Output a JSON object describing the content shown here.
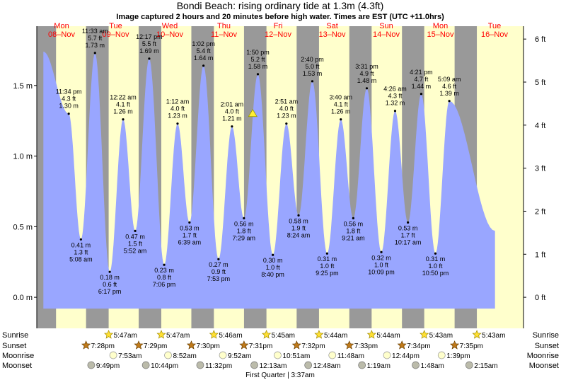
{
  "header": {
    "title": "Bondi Beach: rising  ordinary tide at 1.3m (4.3ft)",
    "subtitle": "Image captured 2 hours and 20 minutes before high water. Times are EST (UTC +11.0hrs)"
  },
  "colors": {
    "day_band": "#ffffcc",
    "night_band": "#999999",
    "tide_fill": "#99a6ff",
    "day_label": "#ff0000",
    "now_marker": "#ffee33"
  },
  "chart_data": {
    "type": "area",
    "title": "Bondi Beach: rising  ordinary tide at 1.3m (4.3ft)",
    "ylabel_left_unit": "m",
    "ylabel_right_unit": "ft",
    "ylim_m": [
      -0.22,
      1.92
    ],
    "yticks_left": [
      {
        "v": 0.0,
        "label": "0.0 m"
      },
      {
        "v": 0.5,
        "label": "0.5 m"
      },
      {
        "v": 1.0,
        "label": "1.0 m"
      },
      {
        "v": 1.5,
        "label": "1.5 m"
      }
    ],
    "yticks_right": [
      {
        "ft": 0,
        "label": "0 ft"
      },
      {
        "ft": 1,
        "label": "1 ft"
      },
      {
        "ft": 2,
        "label": "2 ft"
      },
      {
        "ft": 3,
        "label": "3 ft"
      },
      {
        "ft": 4,
        "label": "4 ft"
      },
      {
        "ft": 5,
        "label": "5 ft"
      },
      {
        "ft": 6,
        "label": "6 ft"
      }
    ],
    "x_start_hour": -3.0,
    "x_end_hour": 219.0,
    "days": [
      {
        "dow": "Mon",
        "date": "08–Nov"
      },
      {
        "dow": "Tue",
        "date": "09–Nov"
      },
      {
        "dow": "Wed",
        "date": "10–Nov"
      },
      {
        "dow": "Thu",
        "date": "11–Nov"
      },
      {
        "dow": "Fri",
        "date": "12–Nov"
      },
      {
        "dow": "Sat",
        "date": "13–Nov"
      },
      {
        "dow": "Sun",
        "date": "14–Nov"
      },
      {
        "dow": "Mon",
        "date": "15–Nov"
      },
      {
        "dow": "Tue",
        "date": "16–Nov"
      }
    ],
    "series_start": {
      "hour": 0.0,
      "height": 1.74
    },
    "series_end": {
      "hour": 206.0,
      "height": 0.47
    },
    "tides": [
      {
        "type": "high",
        "hour": 11.57,
        "time": "11:34 pm",
        "ft": "4.3 ft",
        "m": "1.30 m",
        "height": 1.3
      },
      {
        "type": "low",
        "hour": 17.13,
        "time": "5:08 am",
        "ft": "1.3 ft",
        "m": "0.41 m",
        "height": 0.41
      },
      {
        "type": "high",
        "hour": 23.55,
        "time": "11:33 am",
        "ft": "5.7 ft",
        "m": "1.73 m",
        "height": 1.73
      },
      {
        "type": "low",
        "hour": 30.28,
        "time": "6:17 pm",
        "ft": "0.6 ft",
        "m": "0.18 m",
        "height": 0.18
      },
      {
        "type": "high",
        "hour": 36.37,
        "time": "12:22 am",
        "ft": "4.1 ft",
        "m": "1.26 m",
        "height": 1.26
      },
      {
        "type": "low",
        "hour": 41.87,
        "time": "5:52 am",
        "ft": "1.5 ft",
        "m": "0.47 m",
        "height": 0.47
      },
      {
        "type": "high",
        "hour": 48.28,
        "time": "12:17 pm",
        "ft": "5.5 ft",
        "m": "1.69 m",
        "height": 1.69
      },
      {
        "type": "low",
        "hour": 55.1,
        "time": "7:06 pm",
        "ft": "0.8 ft",
        "m": "0.23 m",
        "height": 0.23
      },
      {
        "type": "high",
        "hour": 61.2,
        "time": "1:12 am",
        "ft": "4.0 ft",
        "m": "1.23 m",
        "height": 1.23
      },
      {
        "type": "low",
        "hour": 66.65,
        "time": "6:39 am",
        "ft": "1.7 ft",
        "m": "0.53 m",
        "height": 0.53
      },
      {
        "type": "high",
        "hour": 73.03,
        "time": "1:02 pm",
        "ft": "5.4 ft",
        "m": "1.64 m",
        "height": 1.64
      },
      {
        "type": "low",
        "hour": 79.88,
        "time": "7:53 pm",
        "ft": "0.9 ft",
        "m": "0.27 m",
        "height": 0.27
      },
      {
        "type": "high",
        "hour": 86.02,
        "time": "2:01 am",
        "ft": "4.0 ft",
        "m": "1.21 m",
        "height": 1.21
      },
      {
        "type": "low",
        "hour": 91.48,
        "time": "7:29 am",
        "ft": "1.8 ft",
        "m": "0.56 m",
        "height": 0.56
      },
      {
        "type": "high",
        "hour": 97.83,
        "time": "1:50 pm",
        "ft": "5.2 ft",
        "m": "1.58 m",
        "height": 1.58
      },
      {
        "type": "low",
        "hour": 104.67,
        "time": "8:40 pm",
        "ft": "1.0 ft",
        "m": "0.30 m",
        "height": 0.3
      },
      {
        "type": "high",
        "hour": 110.85,
        "time": "2:51 am",
        "ft": "4.0 ft",
        "m": "1.23 m",
        "height": 1.23
      },
      {
        "type": "low",
        "hour": 116.4,
        "time": "8:24 am",
        "ft": "1.9 ft",
        "m": "0.58 m",
        "height": 0.58
      },
      {
        "type": "high",
        "hour": 122.67,
        "time": "2:40 pm",
        "ft": "5.0 ft",
        "m": "1.53 m",
        "height": 1.53
      },
      {
        "type": "low",
        "hour": 129.42,
        "time": "9:25 pm",
        "ft": "1.0 ft",
        "m": "0.31 m",
        "height": 0.31
      },
      {
        "type": "high",
        "hour": 135.67,
        "time": "3:40 am",
        "ft": "4.1 ft",
        "m": "1.26 m",
        "height": 1.26
      },
      {
        "type": "low",
        "hour": 141.35,
        "time": "9:21 am",
        "ft": "1.8 ft",
        "m": "0.56 m",
        "height": 0.56
      },
      {
        "type": "high",
        "hour": 147.52,
        "time": "3:31 pm",
        "ft": "4.9 ft",
        "m": "1.48 m",
        "height": 1.48
      },
      {
        "type": "low",
        "hour": 154.15,
        "time": "10:09 pm",
        "ft": "1.0 ft",
        "m": "0.32 m",
        "height": 0.32
      },
      {
        "type": "high",
        "hour": 160.43,
        "time": "4:26 am",
        "ft": "4.3 ft",
        "m": "1.32 m",
        "height": 1.32
      },
      {
        "type": "low",
        "hour": 166.28,
        "time": "10:17 am",
        "ft": "1.7 ft",
        "m": "0.53 m",
        "height": 0.53
      },
      {
        "type": "high",
        "hour": 172.35,
        "time": "4:21 pm",
        "ft": "4.7 ft",
        "m": "1.44 m",
        "height": 1.44
      },
      {
        "type": "low",
        "hour": 178.83,
        "time": "10:50 pm",
        "ft": "1.0 ft",
        "m": "0.31 m",
        "height": 0.31
      },
      {
        "type": "high",
        "hour": 185.15,
        "time": "5:09 am",
        "ft": "4.6 ft",
        "m": "1.39 m",
        "height": 1.39
      }
    ],
    "nights": [
      {
        "start": -3.0,
        "end": 5.78
      },
      {
        "start": 19.47,
        "end": 29.78
      },
      {
        "start": 43.48,
        "end": 53.78
      },
      {
        "start": 67.5,
        "end": 77.77
      },
      {
        "start": 91.52,
        "end": 101.75
      },
      {
        "start": 115.53,
        "end": 125.73
      },
      {
        "start": 139.55,
        "end": 149.73
      },
      {
        "start": 163.57,
        "end": 173.72
      },
      {
        "start": 187.58,
        "end": 197.72
      }
    ],
    "now_marker": {
      "hour": 95.5,
      "height": 1.3
    }
  },
  "astronomy": {
    "row_labels": {
      "sunrise": "Sunrise",
      "sunset": "Sunset",
      "moonrise": "Moonrise",
      "moonset": "Moonset"
    },
    "sunrise": [
      {
        "hour": 29.78,
        "label": "5:47am"
      },
      {
        "hour": 53.78,
        "label": "5:47am"
      },
      {
        "hour": 77.77,
        "label": "5:46am"
      },
      {
        "hour": 101.75,
        "label": "5:45am"
      },
      {
        "hour": 125.73,
        "label": "5:44am"
      },
      {
        "hour": 149.73,
        "label": "5:44am"
      },
      {
        "hour": 173.72,
        "label": "5:43am"
      },
      {
        "hour": 197.72,
        "label": "5:43am"
      }
    ],
    "sunset": [
      {
        "hour": 19.47,
        "label": "7:28pm"
      },
      {
        "hour": 43.48,
        "label": "7:29pm"
      },
      {
        "hour": 67.5,
        "label": "7:30pm"
      },
      {
        "hour": 91.52,
        "label": "7:31pm"
      },
      {
        "hour": 115.53,
        "label": "7:32pm"
      },
      {
        "hour": 139.55,
        "label": "7:33pm"
      },
      {
        "hour": 163.57,
        "label": "7:34pm"
      },
      {
        "hour": 187.58,
        "label": "7:35pm"
      }
    ],
    "moonrise": [
      {
        "hour": 31.88,
        "label": "7:53am"
      },
      {
        "hour": 56.87,
        "label": "8:52am"
      },
      {
        "hour": 81.87,
        "label": "9:52am"
      },
      {
        "hour": 106.85,
        "label": "10:51am"
      },
      {
        "hour": 131.8,
        "label": "11:48am"
      },
      {
        "hour": 156.73,
        "label": "12:44pm"
      },
      {
        "hour": 181.65,
        "label": "1:39pm"
      }
    ],
    "moonset": [
      {
        "hour": 21.82,
        "label": "9:49pm"
      },
      {
        "hour": 46.73,
        "label": "10:44pm"
      },
      {
        "hour": 71.53,
        "label": "11:32pm"
      },
      {
        "hour": 96.22,
        "label": "12:13am"
      },
      {
        "hour": 120.8,
        "label": "12:48am"
      },
      {
        "hour": 145.32,
        "label": "1:19am"
      },
      {
        "hour": 169.8,
        "label": "1:48am"
      },
      {
        "hour": 194.25,
        "label": "2:15am"
      }
    ],
    "phase_note": "First Quarter | 3:37am"
  }
}
